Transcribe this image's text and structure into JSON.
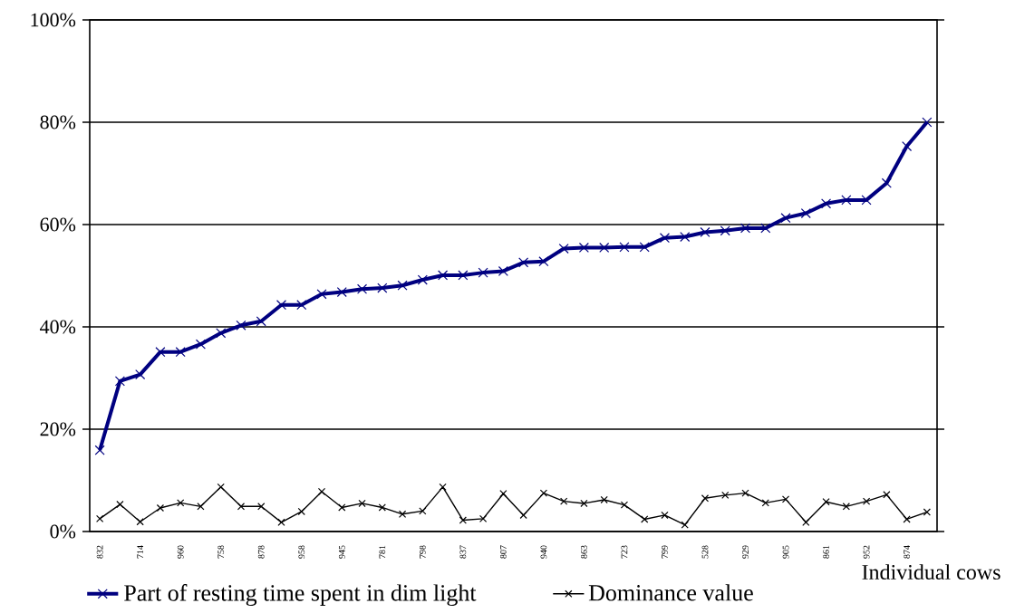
{
  "chart_data": {
    "type": "line",
    "xlabel": "Individual cows",
    "categories": [
      "832",
      null,
      "714",
      null,
      "960",
      null,
      "758",
      null,
      "878",
      null,
      "958",
      null,
      "945",
      null,
      "781",
      null,
      "798",
      null,
      "837",
      null,
      "807",
      null,
      "940",
      null,
      "863",
      null,
      "723",
      null,
      "799",
      null,
      "528",
      null,
      "929",
      null,
      "905",
      null,
      "861",
      null,
      "952",
      null,
      "874",
      null
    ],
    "ylim": [
      0,
      100
    ],
    "yticks": [
      {
        "value": 0,
        "label": "0%"
      },
      {
        "value": 20,
        "label": "20%"
      },
      {
        "value": 40,
        "label": "40%"
      },
      {
        "value": 60,
        "label": "60%"
      },
      {
        "value": 80,
        "label": "80%"
      },
      {
        "value": 100,
        "label": "100%"
      }
    ],
    "grid": "y",
    "legend": "bottom",
    "marker": "cross",
    "line_style": "solid",
    "series": [
      {
        "name": "Part of resting time spent in dim light",
        "color": "#000080",
        "values": [
          15.9,
          29.4,
          30.7,
          35.1,
          35.1,
          36.6,
          38.8,
          40.3,
          41.1,
          44.3,
          44.3,
          46.4,
          46.8,
          47.4,
          47.6,
          48.1,
          49.2,
          50.1,
          50.1,
          50.6,
          50.9,
          52.6,
          52.8,
          55.3,
          55.5,
          55.5,
          55.6,
          55.6,
          57.4,
          57.6,
          58.5,
          58.8,
          59.3,
          59.3,
          61.3,
          62.2,
          64.1,
          64.8,
          64.8,
          68.1,
          75.3,
          80.0
        ]
      },
      {
        "name": "Dominance value",
        "color": "#000000",
        "values": [
          2.5,
          5.3,
          1.9,
          4.6,
          5.6,
          4.9,
          8.7,
          4.9,
          4.9,
          1.8,
          3.9,
          7.8,
          4.7,
          5.5,
          4.7,
          3.4,
          4.0,
          8.7,
          2.2,
          2.5,
          7.4,
          3.2,
          7.5,
          5.9,
          5.5,
          6.2,
          5.2,
          2.4,
          3.2,
          1.3,
          6.5,
          7.1,
          7.5,
          5.6,
          6.3,
          1.8,
          5.8,
          4.9,
          5.9,
          7.2,
          2.4,
          3.8
        ]
      }
    ]
  }
}
